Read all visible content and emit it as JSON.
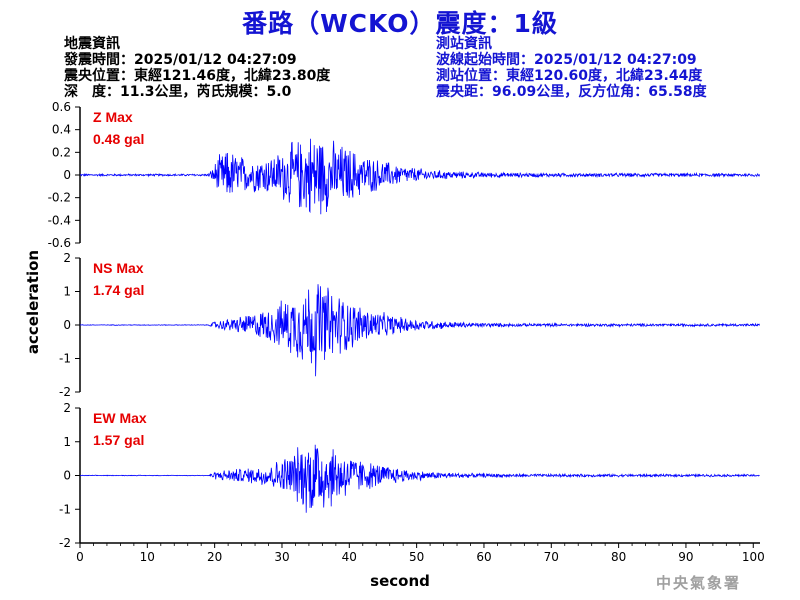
{
  "header": {
    "title": "番路（WCKO）震度：1級"
  },
  "quake_info": {
    "heading": "地震資訊",
    "time": "發震時間：2025/01/12 04:27:09",
    "location": "震央位置：東經121.46度，北緯23.80度",
    "depth": "深　度：11.3公里，芮氏規模：5.0"
  },
  "station_info": {
    "heading": "測站資訊",
    "wave_start": "波線起始時間：2025/01/12 04:27:09",
    "location": "測站位置：東經120.60度，北緯23.44度",
    "distance": "震央距：96.09公里，反方位角：65.58度"
  },
  "footer": {
    "agency": "中央氣象署"
  },
  "colors": {
    "title": "#1414d2",
    "trace": "#0000ff",
    "max_label": "#e60000",
    "station_text": "#1414d2"
  },
  "chart_data": {
    "type": "line",
    "xlabel": "second",
    "ylabel": "acceleration",
    "x_range": [
      0,
      101
    ],
    "x_ticks": [
      0,
      10,
      20,
      30,
      40,
      50,
      60,
      70,
      80,
      90,
      100
    ],
    "grid": false,
    "panels": [
      {
        "name": "Z Max",
        "max_value": "0.48 gal",
        "ylim": [
          -0.6,
          0.6
        ],
        "y_ticks": [
          -0.6,
          -0.4,
          -0.2,
          0,
          0.2,
          0.4,
          0.6
        ],
        "y_tick_labels": [
          "-0.6",
          "-0.4",
          "-0.2",
          "0",
          "0.2",
          "0.4",
          "0.6"
        ],
        "envelope": [
          [
            0,
            0.01
          ],
          [
            19,
            0.01
          ],
          [
            19.5,
            0.05
          ],
          [
            20.5,
            0.18
          ],
          [
            22,
            0.25
          ],
          [
            23,
            0.22
          ],
          [
            25,
            0.16
          ],
          [
            27,
            0.18
          ],
          [
            29,
            0.2
          ],
          [
            31,
            0.3
          ],
          [
            33,
            0.36
          ],
          [
            35,
            0.45
          ],
          [
            36,
            0.38
          ],
          [
            38,
            0.32
          ],
          [
            40,
            0.27
          ],
          [
            42,
            0.2
          ],
          [
            45,
            0.14
          ],
          [
            48,
            0.09
          ],
          [
            52,
            0.05
          ],
          [
            58,
            0.03
          ],
          [
            65,
            0.02
          ],
          [
            101,
            0.015
          ]
        ]
      },
      {
        "name": "NS Max",
        "max_value": "1.74 gal",
        "ylim": [
          -2,
          2
        ],
        "y_ticks": [
          -2,
          -1,
          0,
          1,
          2
        ],
        "y_tick_labels": [
          "-2",
          "-1",
          "0",
          "1",
          "2"
        ],
        "envelope": [
          [
            0,
            0.01
          ],
          [
            19,
            0.01
          ],
          [
            20,
            0.12
          ],
          [
            22,
            0.2
          ],
          [
            25,
            0.35
          ],
          [
            28,
            0.55
          ],
          [
            30,
            0.8
          ],
          [
            32,
            1.1
          ],
          [
            34,
            1.45
          ],
          [
            35,
            1.65
          ],
          [
            36,
            1.45
          ],
          [
            38,
            1.1
          ],
          [
            40,
            0.85
          ],
          [
            42,
            0.6
          ],
          [
            45,
            0.4
          ],
          [
            48,
            0.25
          ],
          [
            52,
            0.15
          ],
          [
            58,
            0.08
          ],
          [
            65,
            0.05
          ],
          [
            101,
            0.04
          ]
        ]
      },
      {
        "name": "EW Max",
        "max_value": "1.57 gal",
        "ylim": [
          -2,
          2
        ],
        "y_ticks": [
          -2,
          -1,
          0,
          1,
          2
        ],
        "y_tick_labels": [
          "-2",
          "-1",
          "0",
          "1",
          "2"
        ],
        "envelope": [
          [
            0,
            0.01
          ],
          [
            19,
            0.01
          ],
          [
            20,
            0.12
          ],
          [
            22,
            0.2
          ],
          [
            25,
            0.25
          ],
          [
            28,
            0.38
          ],
          [
            30,
            0.55
          ],
          [
            32,
            0.85
          ],
          [
            34,
            1.3
          ],
          [
            35,
            1.5
          ],
          [
            36,
            1.25
          ],
          [
            38,
            0.95
          ],
          [
            40,
            0.7
          ],
          [
            42,
            0.5
          ],
          [
            45,
            0.35
          ],
          [
            48,
            0.22
          ],
          [
            52,
            0.12
          ],
          [
            58,
            0.07
          ],
          [
            65,
            0.05
          ],
          [
            101,
            0.035
          ]
        ]
      }
    ]
  }
}
